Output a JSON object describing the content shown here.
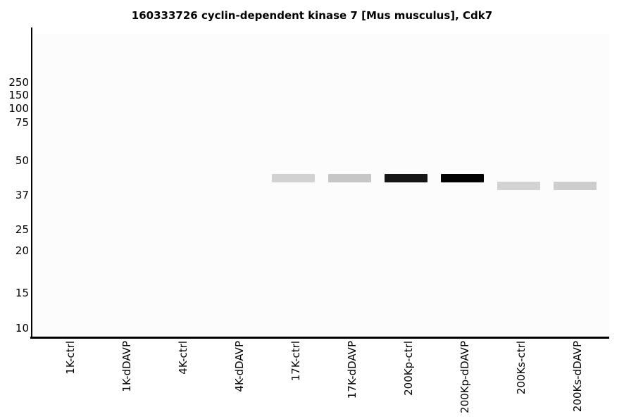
{
  "chart_data": {
    "type": "heatmap",
    "subtype": "western-blot-gel",
    "title": "160333726 cyclin-dependent kinase 7 [Mus musculus], Cdk7",
    "xlabel": "",
    "ylabel": "",
    "grid": false,
    "legend": "none",
    "y_axis": {
      "unit": "kDa",
      "scale": "log-molecular-weight",
      "ticks": [
        250,
        150,
        100,
        75,
        50,
        37,
        25,
        20,
        15,
        10
      ]
    },
    "lanes": [
      "1K-ctrl",
      "1K-dDAVP",
      "4K-ctrl",
      "4K-dDAVP",
      "17K-ctrl",
      "17K-dDAVP",
      "200Kp-ctrl",
      "200Kp-dDAVP",
      "200Ks-ctrl",
      "200Ks-dDAVP"
    ],
    "empty_lanes": [
      "1K-ctrl",
      "1K-dDAVP",
      "4K-ctrl",
      "4K-dDAVP"
    ],
    "bands": [
      {
        "lane": "17K-ctrl",
        "lane_index": 4,
        "mw_kda": 43,
        "intensity": 0.18,
        "color": "#d2d2d2"
      },
      {
        "lane": "17K-dDAVP",
        "lane_index": 5,
        "mw_kda": 43,
        "intensity": 0.23,
        "color": "#c6c6c6"
      },
      {
        "lane": "200Kp-ctrl",
        "lane_index": 6,
        "mw_kda": 43,
        "intensity": 0.92,
        "color": "#161616"
      },
      {
        "lane": "200Kp-dDAVP",
        "lane_index": 7,
        "mw_kda": 43,
        "intensity": 0.99,
        "color": "#020202"
      },
      {
        "lane": "200Ks-ctrl",
        "lane_index": 8,
        "mw_kda": 40,
        "intensity": 0.18,
        "color": "#d2d2d2"
      },
      {
        "lane": "200Ks-dDAVP",
        "lane_index": 9,
        "mw_kda": 40,
        "intensity": 0.2,
        "color": "#cdcdcd"
      }
    ]
  },
  "colors": {
    "axis": "#000000",
    "plot_background": "#fcfcfc",
    "page_background": "#ffffff",
    "text": "#000000"
  }
}
